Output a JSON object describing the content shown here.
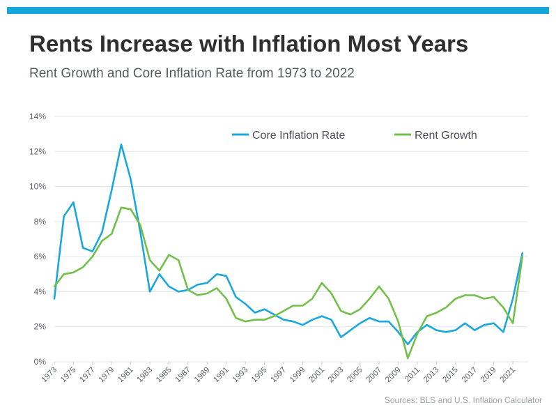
{
  "header": {
    "title": "Rents Increase with Inflation Most Years",
    "subtitle": "Rent Growth and Core Inflation Rate from 1973 to 2022"
  },
  "source_note": "Sources: BLS and U.S. Inflation Calculator",
  "colors": {
    "top_bar": "#15a6dc",
    "core_inflation": "#1aa7e0",
    "rent_growth": "#72bf4a",
    "grid": "#e3e6ea"
  },
  "chart_data": {
    "type": "line",
    "title": "",
    "xlabel": "",
    "ylabel": "",
    "ylim": [
      0,
      14
    ],
    "yticks": [
      "0%",
      "2%",
      "4%",
      "6%",
      "8%",
      "10%",
      "12%",
      "14%"
    ],
    "x_tick_labels": [
      "1973",
      "1975",
      "1977",
      "1979",
      "1981",
      "1983",
      "1985",
      "1987",
      "1989",
      "1991",
      "1993",
      "1995",
      "1997",
      "1999",
      "2001",
      "2003",
      "2005",
      "2007",
      "2009",
      "2011",
      "2013",
      "2015",
      "2017",
      "2019",
      "2021"
    ],
    "grid": true,
    "legend": "top-center",
    "x": [
      1973,
      1974,
      1975,
      1976,
      1977,
      1978,
      1979,
      1980,
      1981,
      1982,
      1983,
      1984,
      1985,
      1986,
      1987,
      1988,
      1989,
      1990,
      1991,
      1992,
      1993,
      1994,
      1995,
      1996,
      1997,
      1998,
      1999,
      2000,
      2001,
      2002,
      2003,
      2004,
      2005,
      2006,
      2007,
      2008,
      2009,
      2010,
      2011,
      2012,
      2013,
      2014,
      2015,
      2016,
      2017,
      2018,
      2019,
      2020,
      2021,
      2022
    ],
    "series": [
      {
        "name": "Core Inflation Rate",
        "values": [
          3.6,
          8.3,
          9.1,
          6.5,
          6.3,
          7.4,
          9.8,
          12.4,
          10.4,
          7.4,
          4.0,
          5.0,
          4.3,
          4.0,
          4.1,
          4.4,
          4.5,
          5.0,
          4.9,
          3.7,
          3.3,
          2.8,
          3.0,
          2.7,
          2.4,
          2.3,
          2.1,
          2.4,
          2.6,
          2.4,
          1.4,
          1.8,
          2.2,
          2.5,
          2.3,
          2.3,
          1.7,
          1.0,
          1.7,
          2.1,
          1.8,
          1.7,
          1.8,
          2.2,
          1.8,
          2.1,
          2.2,
          1.7,
          3.6,
          6.2
        ]
      },
      {
        "name": "Rent Growth",
        "values": [
          4.3,
          5.0,
          5.1,
          5.4,
          6.0,
          6.9,
          7.3,
          8.8,
          8.7,
          7.8,
          5.8,
          5.2,
          6.1,
          5.8,
          4.1,
          3.8,
          3.9,
          4.2,
          3.6,
          2.5,
          2.3,
          2.4,
          2.4,
          2.6,
          2.9,
          3.2,
          3.2,
          3.6,
          4.5,
          3.9,
          2.9,
          2.7,
          3.0,
          3.6,
          4.3,
          3.6,
          2.3,
          0.2,
          1.6,
          2.6,
          2.8,
          3.1,
          3.6,
          3.8,
          3.8,
          3.6,
          3.7,
          3.1,
          2.2,
          6.0
        ]
      }
    ]
  }
}
